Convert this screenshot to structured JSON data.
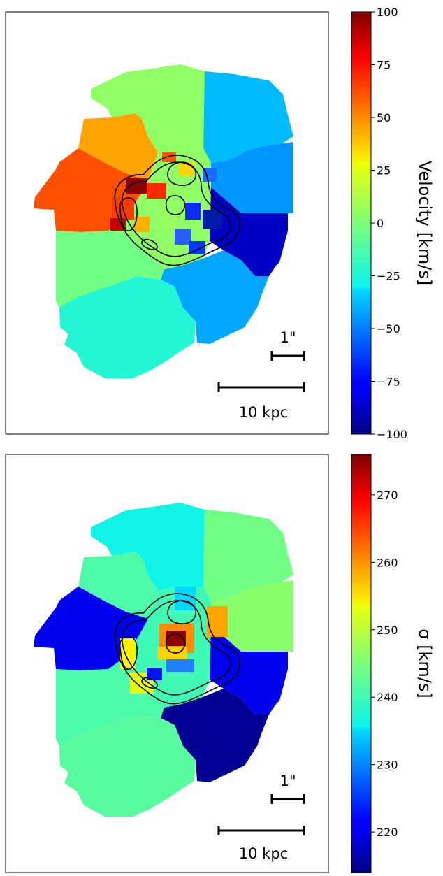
{
  "chart_data": [
    {
      "type": "heatmap",
      "title": "",
      "quantity": "velocity",
      "colormap": "jet",
      "colorbar": {
        "label": "Velocity [km/s]",
        "range": [
          -100,
          100
        ],
        "ticks": [
          100,
          75,
          50,
          25,
          0,
          -25,
          -50,
          -75,
          -100
        ],
        "tick_labels": [
          "100",
          "75",
          "50",
          "25",
          "0",
          "−25",
          "−50",
          "−75",
          "−100"
        ]
      },
      "regions": [
        {
          "id": "n-center",
          "value": 5
        },
        {
          "id": "n-right",
          "value": -38
        },
        {
          "id": "n-left",
          "value": 45
        },
        {
          "id": "ne",
          "value": -45
        },
        {
          "id": "west",
          "value": 62
        },
        {
          "id": "east",
          "value": -88
        },
        {
          "id": "sw",
          "value": -3
        },
        {
          "id": "south",
          "value": -24
        },
        {
          "id": "se",
          "value": -42
        },
        {
          "id": "center",
          "value": 5
        }
      ],
      "scale_bars": [
        {
          "label": "1\""
        },
        {
          "label": "10 kpc"
        }
      ]
    },
    {
      "type": "heatmap",
      "title": "",
      "quantity": "dispersion",
      "colormap": "jet",
      "colorbar": {
        "label": "σ [km/s]",
        "range": [
          214,
          276
        ],
        "ticks": [
          270,
          260,
          250,
          240,
          230,
          220
        ],
        "tick_labels": [
          "270",
          "260",
          "250",
          "240",
          "230",
          "220"
        ]
      },
      "regions": [
        {
          "id": "n-center",
          "value": 236
        },
        {
          "id": "n-right",
          "value": 244
        },
        {
          "id": "n-left",
          "value": 241
        },
        {
          "id": "ne",
          "value": 246
        },
        {
          "id": "west",
          "value": 220
        },
        {
          "id": "east",
          "value": 220
        },
        {
          "id": "sw",
          "value": 241
        },
        {
          "id": "south",
          "value": 242
        },
        {
          "id": "se",
          "value": 215
        },
        {
          "id": "center",
          "value": 240
        }
      ],
      "scale_bars": [
        {
          "label": "1\""
        },
        {
          "label": "10 kpc"
        }
      ]
    }
  ]
}
